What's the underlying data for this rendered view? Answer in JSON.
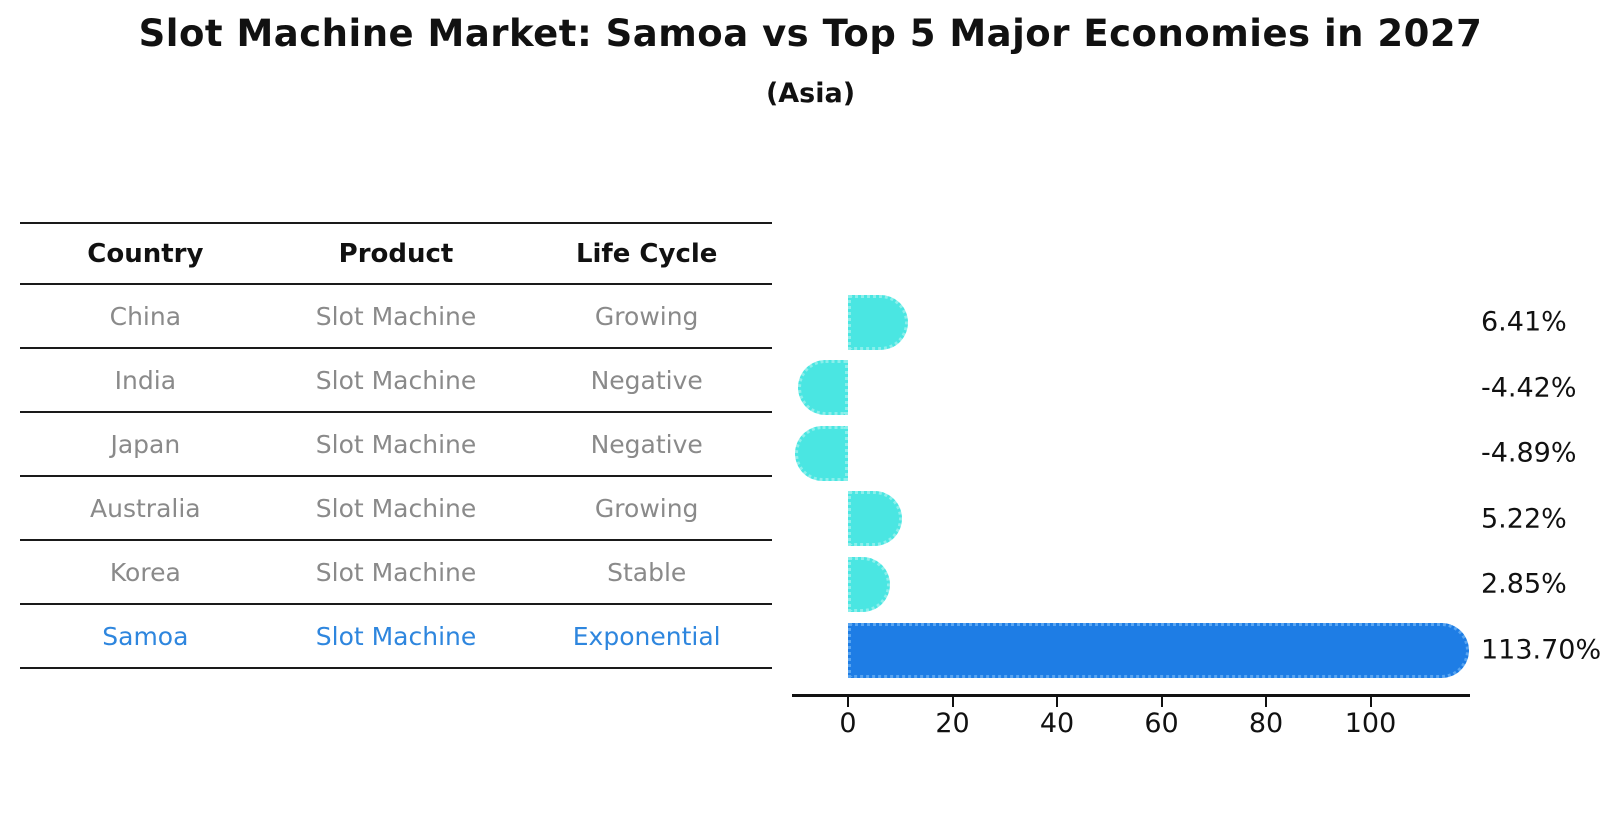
{
  "title": "Slot Machine Market: Samoa vs Top 5 Major Economies in 2027",
  "subtitle": "(Asia)",
  "table": {
    "headers": [
      "Country",
      "Product",
      "Life Cycle"
    ],
    "rows": [
      {
        "country": "China",
        "product": "Slot Machine",
        "life_cycle": "Growing",
        "highlight": false
      },
      {
        "country": "India",
        "product": "Slot Machine",
        "life_cycle": "Negative",
        "highlight": false
      },
      {
        "country": "Japan",
        "product": "Slot Machine",
        "life_cycle": "Negative",
        "highlight": false
      },
      {
        "country": "Australia",
        "product": "Slot Machine",
        "life_cycle": "Growing",
        "highlight": false
      },
      {
        "country": "Korea",
        "product": "Slot Machine",
        "life_cycle": "Stable",
        "highlight": false
      },
      {
        "country": "Samoa",
        "product": "Slot Machine",
        "life_cycle": "Exponential",
        "highlight": true
      }
    ]
  },
  "chart_data": {
    "type": "bar",
    "orientation": "horizontal",
    "title": "Slot Machine Market: Samoa vs Top 5 Major Economies in 2027",
    "subtitle": "(Asia)",
    "categories": [
      "China",
      "India",
      "Japan",
      "Australia",
      "Korea",
      "Samoa"
    ],
    "values": [
      6.41,
      -4.42,
      -4.89,
      5.22,
      2.85,
      113.7
    ],
    "value_labels": [
      "6.41%",
      "-4.42%",
      "-4.89%",
      "5.22%",
      "2.85%",
      "113.70%"
    ],
    "xticks": [
      0,
      20,
      40,
      60,
      80,
      100
    ],
    "xlim": [
      -10.7,
      119.0
    ],
    "grid": false,
    "legend": "none",
    "highlight_index": 5,
    "bar_color_default": "#4AE6E2",
    "bar_color_highlight": "#1E7DE5",
    "highlight_text_color": "#2E86DE",
    "row_text_color": "#8a8a8a"
  }
}
